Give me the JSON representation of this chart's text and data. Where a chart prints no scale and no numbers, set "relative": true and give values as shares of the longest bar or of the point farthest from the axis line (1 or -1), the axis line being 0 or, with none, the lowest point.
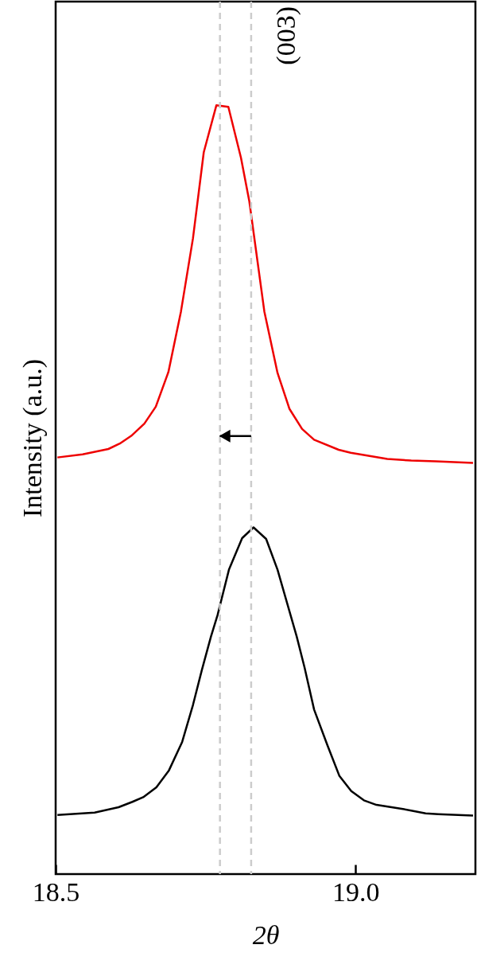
{
  "chart_data": {
    "type": "line",
    "relative": true,
    "xlabel": "2θ",
    "ylabel": "Intensity (a.u.)",
    "xlim": [
      18.5,
      19.2
    ],
    "xticks": [
      18.5,
      {
        "value": 19,
        "label": "19.0"
      }
    ],
    "annotations": [
      "(003)"
    ],
    "ref_lines": [
      {
        "axis": "x",
        "value": 18.774,
        "color": "#cccccc",
        "line_style": "dashed"
      },
      {
        "axis": "x",
        "value": 18.826,
        "color": "#cccccc",
        "line_style": "dashed"
      }
    ],
    "grid": false,
    "marker": "none",
    "line_style": "solid",
    "series": [
      {
        "color": "#ee0000",
        "x": [
          18.503,
          18.545,
          18.588,
          18.607,
          18.626,
          18.648,
          18.667,
          18.688,
          18.709,
          18.729,
          18.747,
          18.768,
          18.788,
          18.809,
          18.823,
          18.848,
          18.87,
          18.89,
          18.911,
          18.931,
          18.972,
          18.992,
          19.053,
          19.093,
          19.134,
          19.196
        ],
        "values": [
          0.542,
          0.546,
          0.553,
          0.56,
          0.57,
          0.586,
          0.608,
          0.653,
          0.732,
          0.827,
          0.939,
          1.0,
          0.998,
          0.932,
          0.875,
          0.732,
          0.652,
          0.605,
          0.579,
          0.565,
          0.552,
          0.548,
          0.54,
          0.538,
          0.537,
          0.535
        ]
      },
      {
        "color": "#000000",
        "x": [
          18.503,
          18.565,
          18.605,
          18.628,
          18.646,
          18.668,
          18.689,
          18.711,
          18.729,
          18.744,
          18.759,
          18.77,
          18.789,
          18.811,
          18.83,
          18.851,
          18.87,
          18.902,
          18.915,
          18.931,
          18.953,
          18.973,
          18.993,
          19.014,
          19.035,
          19.077,
          19.117,
          19.138,
          19.196
        ],
        "values": [
          0.077,
          0.08,
          0.087,
          0.094,
          0.1,
          0.113,
          0.135,
          0.172,
          0.22,
          0.266,
          0.309,
          0.337,
          0.396,
          0.437,
          0.451,
          0.436,
          0.396,
          0.309,
          0.269,
          0.214,
          0.168,
          0.128,
          0.108,
          0.096,
          0.09,
          0.085,
          0.079,
          0.078,
          0.076
        ]
      }
    ]
  }
}
